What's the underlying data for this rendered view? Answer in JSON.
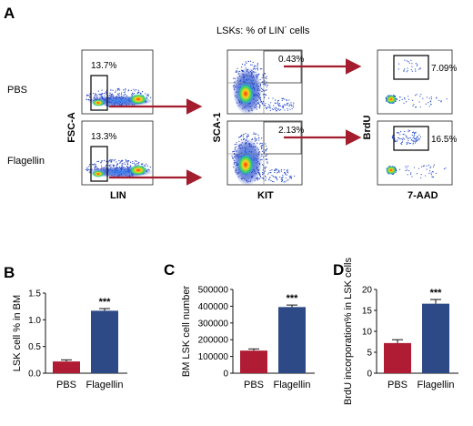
{
  "panel_a": {
    "letter": "A",
    "title_main": "LSKs: % of LIN",
    "title_sup": "-",
    "title_tail": " cells",
    "rows": [
      "PBS",
      "Flagellin"
    ],
    "columns": [
      {
        "x_label": "LIN",
        "y_label": "FSC-A",
        "gates": [
          "13.7%",
          "13.3%"
        ]
      },
      {
        "x_label": "KIT",
        "y_label": "SCA-1",
        "gates": [
          "0.43%",
          "2.13%"
        ]
      },
      {
        "x_label": "7-AAD",
        "y_label": "BrdU",
        "gates": [
          "7.09%",
          "16.5%"
        ]
      }
    ],
    "colors": {
      "arrow": "#a31d2e",
      "density_low": "#1f3fbf",
      "density_high": "#e01010"
    }
  },
  "chart_data": [
    {
      "type": "bar",
      "panel": "B",
      "categories": [
        "PBS",
        "Flagellin"
      ],
      "values": [
        0.22,
        1.17
      ],
      "errors": [
        0.03,
        0.04
      ],
      "ylabel": "LSK cell % in BM",
      "ylim": [
        0,
        1.5
      ],
      "yticks": [
        "0.0",
        "0.5",
        "1.0",
        "1.5"
      ],
      "annotations": [
        "***"
      ],
      "colors": [
        "#b01c34",
        "#2e4a86"
      ]
    },
    {
      "type": "bar",
      "panel": "C",
      "categories": [
        "PBS",
        "Flagellin"
      ],
      "values": [
        135000,
        395000
      ],
      "errors": [
        10000,
        12000
      ],
      "ylabel": "BM LSK cell number",
      "ylim": [
        0,
        500000
      ],
      "yticks": [
        "0",
        "100000",
        "200000",
        "300000",
        "400000",
        "500000"
      ],
      "annotations": [
        "***"
      ],
      "colors": [
        "#b01c34",
        "#2e4a86"
      ]
    },
    {
      "type": "bar",
      "panel": "D",
      "categories": [
        "PBS",
        "Flagellin"
      ],
      "values": [
        7.2,
        16.6
      ],
      "errors": [
        0.8,
        1.0
      ],
      "ylabel": "BrdU incorporation% in LSK cells",
      "ylim": [
        0,
        20
      ],
      "yticks": [
        "0",
        "5",
        "10",
        "15",
        "20"
      ],
      "annotations": [
        "***"
      ],
      "colors": [
        "#b01c34",
        "#2e4a86"
      ]
    }
  ]
}
